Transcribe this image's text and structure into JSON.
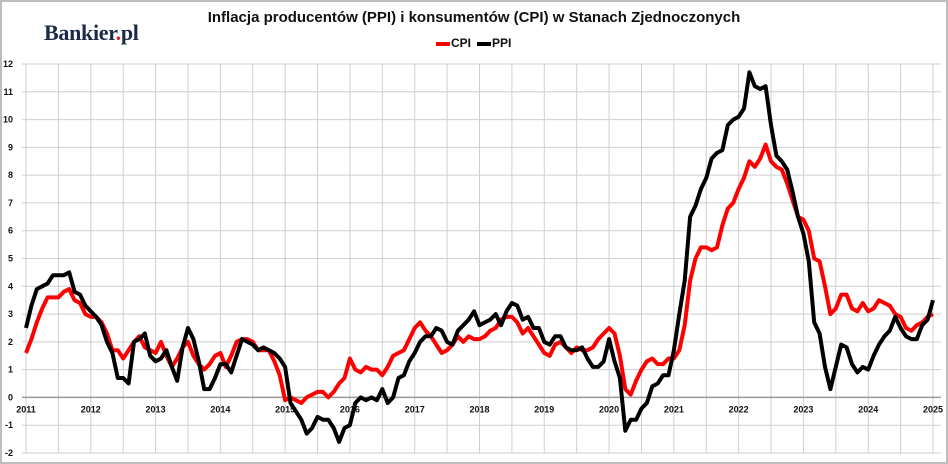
{
  "logo": {
    "text": "Bankier",
    "dot": ".",
    "suffix": "pl"
  },
  "chart_data": {
    "type": "line",
    "title": "Inflacja producentów (PPI) i konsumentów (CPI) w Stanach Zjednoczonych",
    "xlabel": "",
    "ylabel": "",
    "x_start": "2011-01",
    "frequency": "monthly",
    "xlim": [
      2011,
      2025
    ],
    "ylim": [
      -2,
      12
    ],
    "x_ticks": [
      "2011",
      "2012",
      "2013",
      "2014",
      "2015",
      "2016",
      "2017",
      "2018",
      "2019",
      "2020",
      "2021",
      "2022",
      "2023",
      "2024",
      "2025"
    ],
    "y_ticks": [
      "-2",
      "-1",
      "0",
      "1",
      "2",
      "3",
      "4",
      "5",
      "6",
      "7",
      "8",
      "9",
      "10",
      "11",
      "12"
    ],
    "grid": true,
    "legend_position": "top-center",
    "series": [
      {
        "name": "CPI",
        "color": "#ff0000",
        "values": [
          1.6,
          2.1,
          2.7,
          3.2,
          3.6,
          3.6,
          3.6,
          3.8,
          3.9,
          3.5,
          3.4,
          3.0,
          2.9,
          2.9,
          2.7,
          2.3,
          1.7,
          1.7,
          1.4,
          1.7,
          2.0,
          2.2,
          1.8,
          1.7,
          1.6,
          2.0,
          1.5,
          1.1,
          1.4,
          1.8,
          2.0,
          1.5,
          1.2,
          1.0,
          1.2,
          1.5,
          1.6,
          1.1,
          1.5,
          2.0,
          2.1,
          2.1,
          2.0,
          1.7,
          1.7,
          1.7,
          1.3,
          0.8,
          -0.1,
          0.0,
          -0.1,
          -0.2,
          0.0,
          0.1,
          0.2,
          0.2,
          0.0,
          0.2,
          0.5,
          0.7,
          1.4,
          1.0,
          0.9,
          1.1,
          1.0,
          1.0,
          0.8,
          1.1,
          1.5,
          1.6,
          1.7,
          2.1,
          2.5,
          2.7,
          2.4,
          2.2,
          1.9,
          1.6,
          1.7,
          1.9,
          2.2,
          2.0,
          2.2,
          2.1,
          2.1,
          2.2,
          2.4,
          2.5,
          2.8,
          2.9,
          2.9,
          2.7,
          2.3,
          2.5,
          2.2,
          1.9,
          1.6,
          1.5,
          1.9,
          2.0,
          1.8,
          1.6,
          1.8,
          1.7,
          1.7,
          1.8,
          2.1,
          2.3,
          2.5,
          2.3,
          1.5,
          0.3,
          0.1,
          0.6,
          1.0,
          1.3,
          1.4,
          1.2,
          1.2,
          1.4,
          1.4,
          1.7,
          2.6,
          4.2,
          5.0,
          5.4,
          5.4,
          5.3,
          5.4,
          6.2,
          6.8,
          7.0,
          7.5,
          7.9,
          8.5,
          8.3,
          8.6,
          9.1,
          8.5,
          8.3,
          8.2,
          7.7,
          7.1,
          6.5,
          6.4,
          6.0,
          5.0,
          4.9,
          4.0,
          3.0,
          3.2,
          3.7,
          3.7,
          3.2,
          3.1,
          3.4,
          3.1,
          3.2,
          3.5,
          3.4,
          3.3,
          3.0,
          2.9,
          2.5,
          2.4,
          2.6,
          2.7,
          2.9,
          3.0
        ]
      },
      {
        "name": "PPI",
        "color": "#000000",
        "values": [
          2.5,
          3.3,
          3.9,
          4.0,
          4.1,
          4.4,
          4.4,
          4.4,
          4.5,
          3.8,
          3.7,
          3.3,
          3.1,
          2.9,
          2.6,
          2.0,
          1.6,
          0.7,
          0.7,
          0.5,
          2.0,
          2.1,
          2.3,
          1.5,
          1.3,
          1.4,
          1.7,
          1.1,
          0.6,
          1.8,
          2.5,
          2.1,
          1.3,
          0.3,
          0.3,
          0.7,
          1.2,
          1.2,
          0.9,
          1.5,
          2.1,
          2.0,
          1.9,
          1.7,
          1.8,
          1.7,
          1.6,
          1.4,
          1.1,
          -0.2,
          -0.5,
          -0.8,
          -1.3,
          -1.1,
          -0.7,
          -0.8,
          -0.8,
          -1.1,
          -1.6,
          -1.1,
          -1.0,
          -0.2,
          0.0,
          -0.1,
          0.0,
          -0.1,
          0.3,
          -0.2,
          0.0,
          0.7,
          0.8,
          1.3,
          1.6,
          2.0,
          2.2,
          2.2,
          2.5,
          2.4,
          2.0,
          1.9,
          2.4,
          2.6,
          2.8,
          3.1,
          2.6,
          2.7,
          2.8,
          3.0,
          2.6,
          3.1,
          3.4,
          3.3,
          2.8,
          2.9,
          2.5,
          2.5,
          2.0,
          1.9,
          2.2,
          2.2,
          1.8,
          1.7,
          1.7,
          1.8,
          1.4,
          1.1,
          1.1,
          1.3,
          2.1,
          1.3,
          0.7,
          -1.2,
          -0.8,
          -0.8,
          -0.4,
          -0.2,
          0.4,
          0.5,
          0.8,
          0.8,
          1.7,
          3.0,
          4.2,
          6.5,
          6.9,
          7.5,
          7.9,
          8.6,
          8.8,
          8.9,
          9.8,
          10.0,
          10.1,
          10.4,
          11.7,
          11.2,
          11.1,
          11.2,
          9.8,
          8.7,
          8.5,
          8.2,
          7.4,
          6.5,
          5.9,
          4.9,
          2.7,
          2.3,
          1.1,
          0.3,
          1.1,
          1.9,
          1.8,
          1.2,
          0.9,
          1.1,
          1.0,
          1.5,
          1.9,
          2.2,
          2.4,
          2.9,
          2.5,
          2.2,
          2.1,
          2.1,
          2.6,
          2.8,
          3.5
        ]
      }
    ]
  }
}
